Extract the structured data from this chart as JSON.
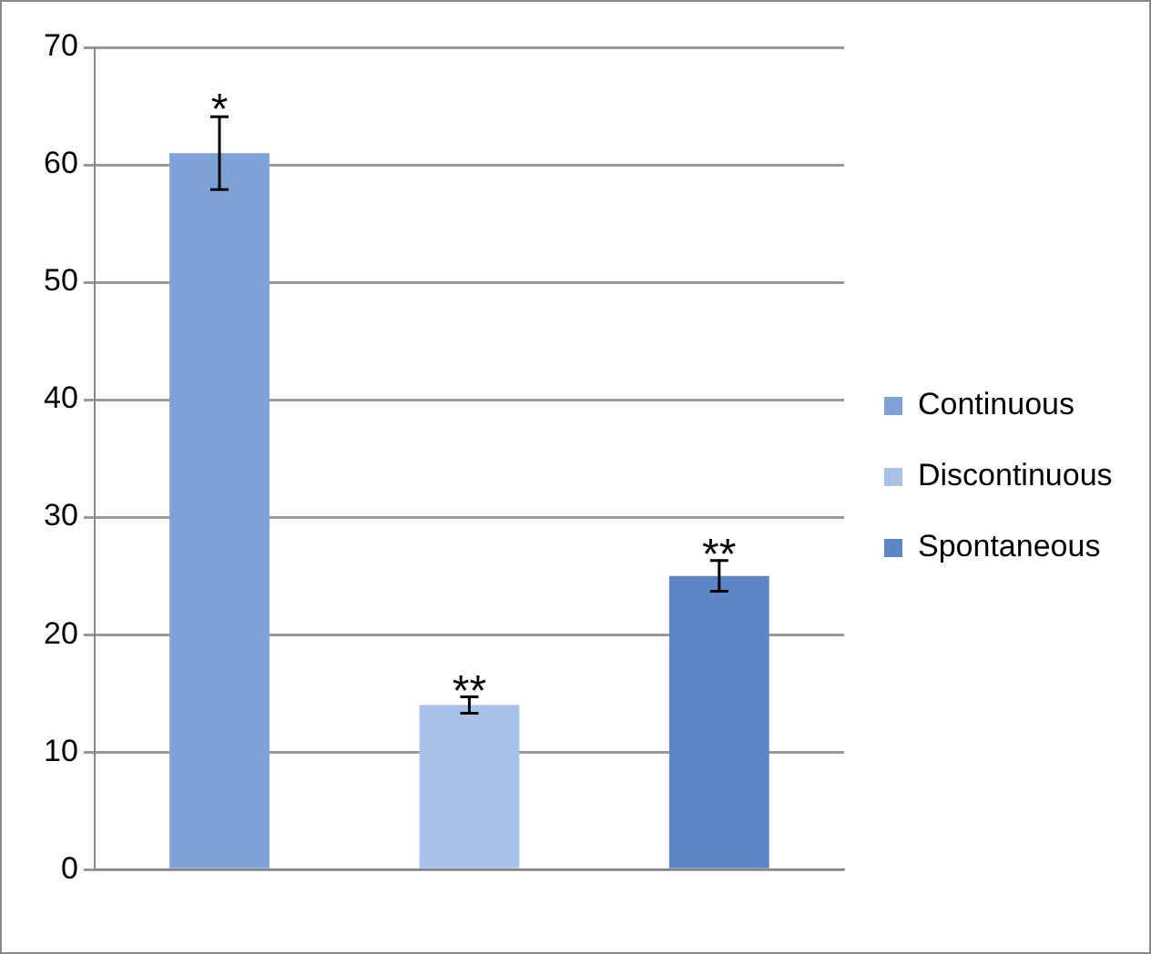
{
  "chart_data": {
    "type": "bar",
    "categories": [
      null
    ],
    "series": [
      {
        "name": "Continuous",
        "color": "#7fa2d6",
        "values": [
          61
        ],
        "errors": [
          3.1
        ]
      },
      {
        "name": "Discontinuous",
        "color": "#a9c1e6",
        "values": [
          14
        ],
        "errors": [
          0.7
        ]
      },
      {
        "name": "Spontaneous",
        "color": "#5b87c8",
        "values": [
          25
        ],
        "errors": [
          1.3
        ]
      }
    ],
    "annotations": [
      {
        "text": "*",
        "y": 64.2
      },
      {
        "text": "**",
        "y": 14.7
      },
      {
        "text": "**",
        "y": 26.3
      }
    ],
    "ylim": [
      0,
      70
    ],
    "yticks": [
      0,
      10,
      20,
      30,
      40,
      50,
      60,
      70
    ],
    "grid": "y",
    "legend": "right"
  }
}
